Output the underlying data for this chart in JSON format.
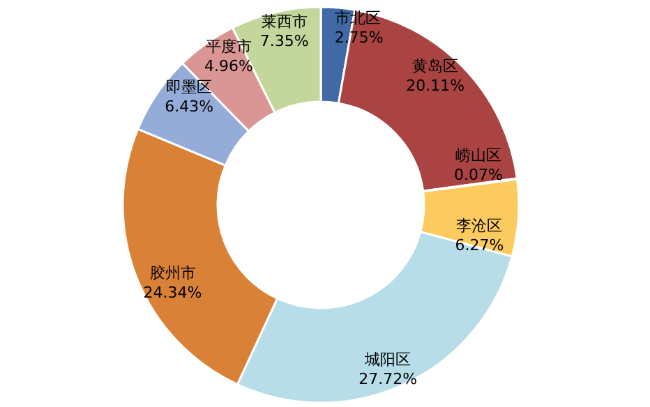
{
  "chart_data": {
    "type": "donut",
    "categories": [
      "市北区",
      "黄岛区",
      "崂山区",
      "李沧区",
      "城阳区",
      "胶州市",
      "即墨区",
      "平度市",
      "莱西市"
    ],
    "values": [
      2.75,
      20.11,
      0.07,
      6.27,
      27.72,
      24.34,
      6.43,
      4.96,
      7.35
    ],
    "value_labels": [
      "2.75%",
      "20.11%",
      "0.07%",
      "6.27%",
      "27.72%",
      "24.34%",
      "6.43%",
      "4.96%",
      "7.35%"
    ],
    "colors": [
      "#3f6aa6",
      "#a94442",
      "#8ea84e",
      "#fccb5f",
      "#b7dde8",
      "#da8138",
      "#95acd8",
      "#d99694",
      "#c3d69b"
    ]
  }
}
